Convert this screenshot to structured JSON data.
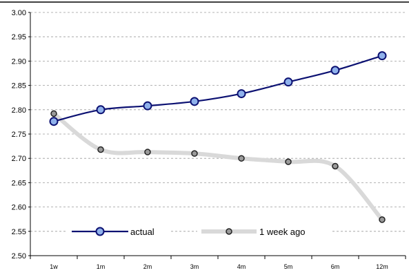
{
  "chart_data": {
    "type": "line",
    "title": "",
    "xlabel": "",
    "ylabel": "",
    "categories": [
      "1w",
      "1m",
      "2m",
      "3m",
      "4m",
      "5m",
      "6m",
      "12m"
    ],
    "ylim": [
      2.5,
      3.0
    ],
    "yticks": [
      "3.00",
      "2.95",
      "2.90",
      "2.85",
      "2.80",
      "2.75",
      "2.70",
      "2.65",
      "2.60",
      "2.55",
      "2.50"
    ],
    "grid": true,
    "legend_position": "bottom-left",
    "series": [
      {
        "name": "actual",
        "values": [
          2.776,
          2.8,
          2.808,
          2.817,
          2.833,
          2.857,
          2.881,
          2.911
        ],
        "line_color": "#0c1172",
        "marker_fill": "#8fb1eb"
      },
      {
        "name": "1 week ago",
        "values": [
          2.792,
          2.718,
          2.713,
          2.71,
          2.7,
          2.693,
          2.684,
          2.574
        ],
        "line_color": "#d9d9d9",
        "marker_fill": "#9a9a9a"
      }
    ]
  }
}
